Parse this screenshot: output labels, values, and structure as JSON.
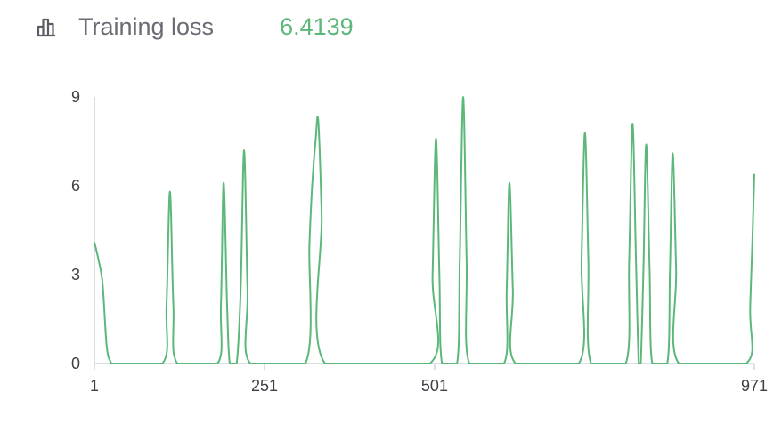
{
  "header": {
    "icon": "bar-chart-icon",
    "title": "Training loss",
    "value": "6.4139"
  },
  "colors": {
    "line": "#5cb87a",
    "value": "#5cb87a",
    "axis": "#d4d4d8",
    "icon": "#5b5b63"
  },
  "chart_data": {
    "type": "line",
    "title": "Training loss",
    "xlabel": "",
    "ylabel": "",
    "xlim": [
      1,
      971
    ],
    "ylim": [
      0,
      9
    ],
    "yticks": [
      0,
      3,
      6,
      9
    ],
    "xticks": [
      1,
      251,
      501,
      971
    ],
    "grid": false,
    "series": [
      {
        "values": [
          [
            1,
            4.1
          ],
          [
            7,
            3.5
          ],
          [
            13,
            2.7
          ],
          [
            19,
            0.6
          ],
          [
            25,
            0.05
          ],
          [
            31,
            0
          ],
          [
            101,
            0
          ],
          [
            107,
            2.0
          ],
          [
            112,
            5.8
          ],
          [
            117,
            2.0
          ],
          [
            123,
            0
          ],
          [
            182,
            0
          ],
          [
            187,
            2.0
          ],
          [
            191,
            6.1
          ],
          [
            196,
            2.0
          ],
          [
            200,
            0
          ],
          [
            210,
            0
          ],
          [
            216,
            2.5
          ],
          [
            221,
            7.2
          ],
          [
            226,
            2.5
          ],
          [
            230,
            0
          ],
          [
            311,
            0
          ],
          [
            317,
            4.0
          ],
          [
            321,
            6.0
          ],
          [
            326,
            7.5
          ],
          [
            330,
            8.2
          ],
          [
            335,
            5.0
          ],
          [
            340,
            0
          ],
          [
            494,
            0
          ],
          [
            498,
            3.0
          ],
          [
            503,
            7.6
          ],
          [
            508,
            3.0
          ],
          [
            512,
            0
          ],
          [
            534,
            0
          ],
          [
            538,
            3.5
          ],
          [
            543,
            9.0
          ],
          [
            548,
            3.5
          ],
          [
            552,
            0
          ],
          [
            603,
            0
          ],
          [
            607,
            2.5
          ],
          [
            611,
            6.1
          ],
          [
            616,
            2.5
          ],
          [
            620,
            0
          ],
          [
            713,
            0
          ],
          [
            717,
            3.5
          ],
          [
            722,
            7.8
          ],
          [
            727,
            3.5
          ],
          [
            731,
            0
          ],
          [
            782,
            0
          ],
          [
            787,
            3.5
          ],
          [
            792,
            8.1
          ],
          [
            797,
            3.5
          ],
          [
            801,
            0
          ],
          [
            804,
            0
          ],
          [
            808,
            3.2
          ],
          [
            812,
            7.4
          ],
          [
            817,
            3.2
          ],
          [
            821,
            0
          ],
          [
            843,
            0
          ],
          [
            847,
            3.2
          ],
          [
            851,
            7.1
          ],
          [
            856,
            3.2
          ],
          [
            860,
            0
          ],
          [
            959,
            0
          ],
          [
            965,
            2.0
          ],
          [
            971,
            6.4
          ]
        ]
      }
    ]
  }
}
